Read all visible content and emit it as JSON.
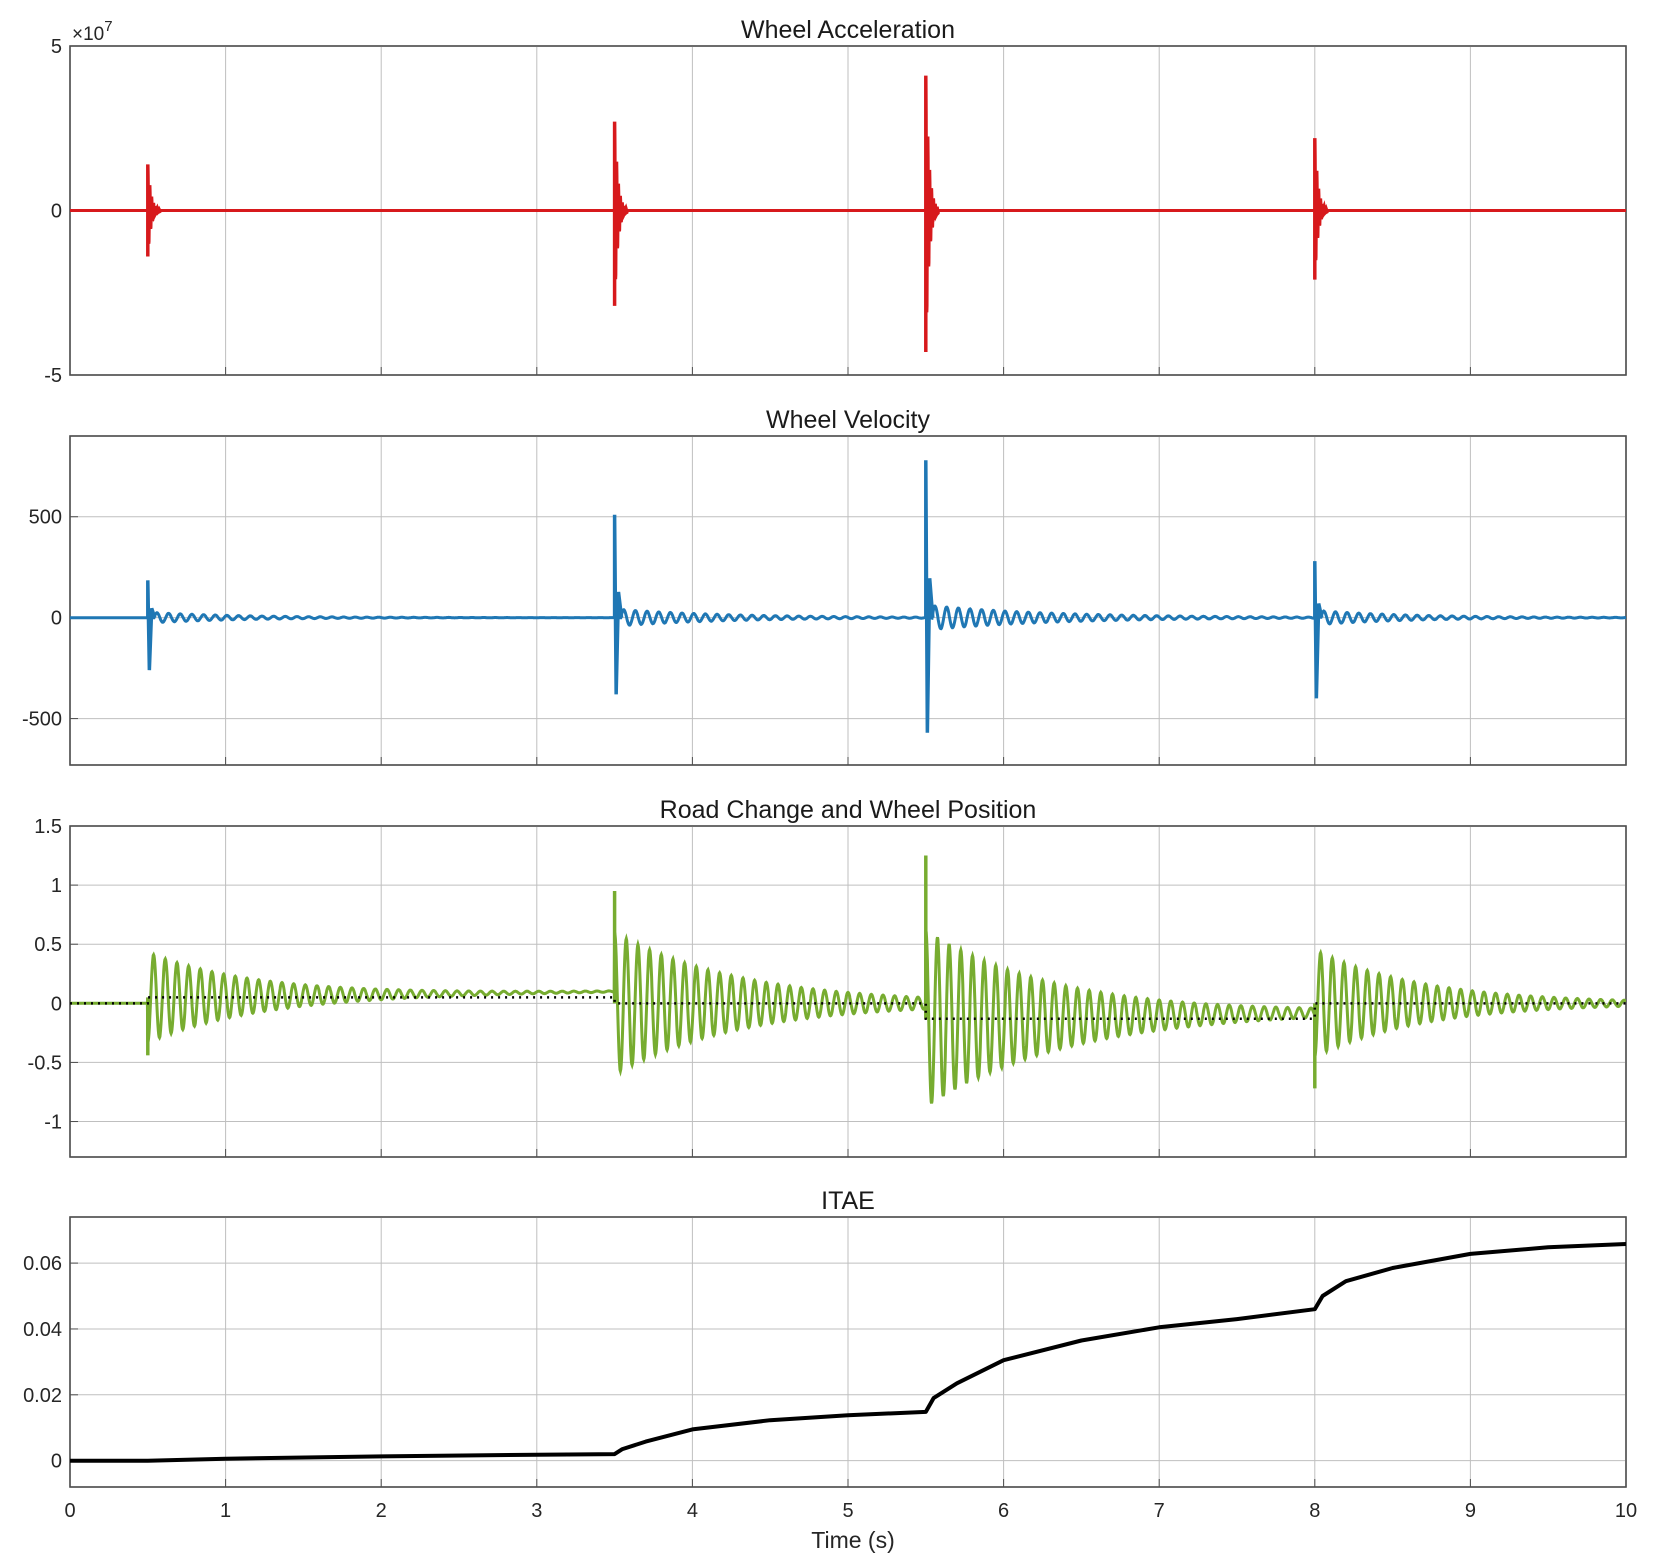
{
  "figure": {
    "x_label": "Time (s)",
    "x_ticks": [
      "0",
      "1",
      "2",
      "3",
      "4",
      "5",
      "6",
      "7",
      "8",
      "9",
      "10"
    ]
  },
  "colors": {
    "acceleration": "#d7191c",
    "velocity": "#1f77b4",
    "position": "#77ac30",
    "road": "#000000",
    "itae": "#000000"
  },
  "chart_data": [
    {
      "type": "line",
      "title": "Wheel Acceleration",
      "xlabel": "",
      "ylabel": "",
      "exponent_label": "×10",
      "exponent_power": "7",
      "xlim": [
        0,
        10
      ],
      "ylim": [
        -5,
        5
      ],
      "y_ticks": [
        "-5",
        "0",
        "5"
      ],
      "grid": true,
      "impulses": [
        {
          "t": 0.5,
          "peak": 1.4,
          "trough": -1.4,
          "decay": 0.02
        },
        {
          "t": 3.5,
          "peak": 2.7,
          "trough": -2.9,
          "decay": 0.02
        },
        {
          "t": 5.5,
          "peak": 4.1,
          "trough": -4.3,
          "decay": 0.02
        },
        {
          "t": 8.0,
          "peak": 2.2,
          "trough": -2.1,
          "decay": 0.02
        }
      ]
    },
    {
      "type": "line",
      "title": "Wheel Velocity",
      "xlabel": "",
      "ylabel": "",
      "xlim": [
        0,
        10
      ],
      "ylim": [
        -730,
        900
      ],
      "y_ticks": [
        "-500",
        "0",
        "500"
      ],
      "grid": true,
      "impulses": [
        {
          "t": 0.5,
          "peak": 185,
          "trough": -260,
          "ring": 25,
          "decay": 0.6
        },
        {
          "t": 3.5,
          "peak": 510,
          "trough": -380,
          "ring": 40,
          "decay": 0.7
        },
        {
          "t": 5.5,
          "peak": 780,
          "trough": -570,
          "ring": 60,
          "decay": 0.8
        },
        {
          "t": 8.0,
          "peak": 280,
          "trough": -400,
          "ring": 35,
          "decay": 0.6
        }
      ]
    },
    {
      "type": "line",
      "title": "Road Change and Wheel Position",
      "xlabel": "",
      "ylabel": "",
      "xlim": [
        0,
        10
      ],
      "ylim": [
        -1.3,
        1.5
      ],
      "y_ticks": [
        "-1",
        "-0.5",
        "0",
        "0.5",
        "1",
        "1.5"
      ],
      "grid": true,
      "series": [
        {
          "role": "road",
          "style": "dotted",
          "steps": [
            {
              "t": 0.0,
              "level": 0.0
            },
            {
              "t": 0.5,
              "level": 0.05
            },
            {
              "t": 3.5,
              "level": 0.0
            },
            {
              "t": 5.5,
              "level": -0.13
            },
            {
              "t": 8.0,
              "level": 0.0
            }
          ]
        },
        {
          "role": "wheel_position",
          "style": "solid",
          "events": [
            {
              "t": 0.5,
              "amp": 0.38,
              "first": -0.44,
              "decay": 0.7,
              "base": 0.05,
              "drift_end": 0.1
            },
            {
              "t": 3.5,
              "amp": 0.6,
              "first": 0.95,
              "decay": 0.8,
              "base": 0.0,
              "drift_end": 0.0
            },
            {
              "t": 5.5,
              "amp": 0.75,
              "first": 1.25,
              "decay": 0.85,
              "base": -0.13,
              "drift_end": -0.08
            },
            {
              "t": 8.0,
              "amp": 0.45,
              "first": -0.72,
              "decay": 0.7,
              "base": 0.0,
              "drift_end": 0.0
            }
          ]
        }
      ]
    },
    {
      "type": "line",
      "title": "ITAE",
      "xlabel": "Time (s)",
      "ylabel": "",
      "xlim": [
        0,
        10
      ],
      "ylim": [
        -0.008,
        0.074
      ],
      "y_ticks": [
        "0",
        "0.02",
        "0.04",
        "0.06"
      ],
      "grid": true,
      "x": [
        0,
        0.5,
        1,
        2,
        3,
        3.5,
        3.55,
        3.7,
        4.0,
        4.5,
        5.0,
        5.5,
        5.55,
        5.7,
        6.0,
        6.5,
        7.0,
        7.5,
        8.0,
        8.05,
        8.2,
        8.5,
        9.0,
        9.5,
        10
      ],
      "y": [
        0.0,
        0.0,
        0.0006,
        0.0013,
        0.0018,
        0.002,
        0.0035,
        0.0058,
        0.0095,
        0.0123,
        0.0138,
        0.0148,
        0.019,
        0.0235,
        0.0305,
        0.0365,
        0.0405,
        0.043,
        0.046,
        0.05,
        0.0545,
        0.0585,
        0.0628,
        0.0648,
        0.0658
      ]
    }
  ]
}
